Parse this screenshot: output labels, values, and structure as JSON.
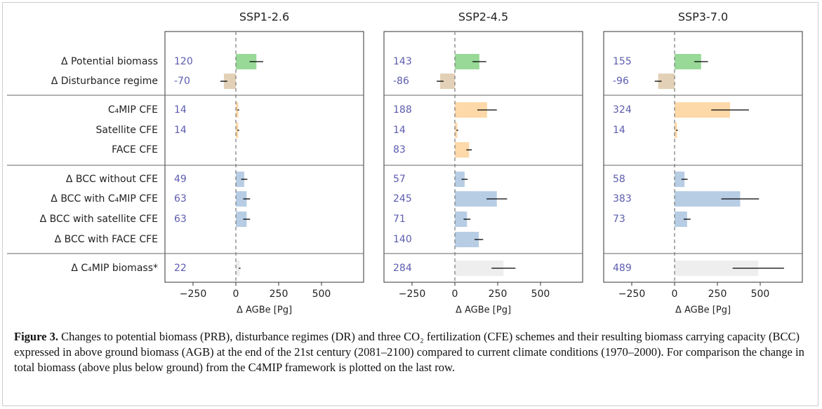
{
  "chart_data": [
    {
      "type": "hbar",
      "title": "SSP1-2.6",
      "xlabel": "Δ AGBe [Pg]",
      "categories": [
        "Δ Potential biomass",
        "Δ Disturbance regime",
        "C₄MIP CFE",
        "Satellite CFE",
        "FACE CFE",
        "Δ BCC without CFE",
        "Δ BCC with C₄MIP CFE",
        "Δ BCC with satellite CFE",
        "Δ BCC with FACE CFE",
        "Δ C₄MIP biomass*"
      ],
      "values": [
        120,
        -70,
        14,
        14,
        null,
        49,
        63,
        63,
        null,
        22
      ],
      "errors": [
        40,
        20,
        5,
        5,
        null,
        18,
        20,
        20,
        null,
        5
      ],
      "colors": [
        "#98d998",
        "#e3d1b7",
        "#fdd8a8",
        "#fdd8a8",
        "#fdd8a8",
        "#b7cde4",
        "#b7cde4",
        "#b7cde4",
        "#b7cde4",
        "#eeeeee"
      ],
      "xlim": [
        -414,
        746
      ],
      "xticks": [
        {
          "value": -250,
          "label": "−250"
        },
        0,
        250,
        500
      ]
    },
    {
      "type": "hbar",
      "title": "SSP2-4.5",
      "xlabel": "Δ AGBe [Pg]",
      "values": [
        143,
        -86,
        188,
        14,
        83,
        57,
        245,
        71,
        140,
        284
      ],
      "errors": [
        40,
        20,
        57,
        5,
        16,
        18,
        60,
        20,
        25,
        70
      ],
      "colors": [
        "#98d998",
        "#e3d1b7",
        "#fdd8a8",
        "#fdd8a8",
        "#fdd8a8",
        "#b7cde4",
        "#b7cde4",
        "#b7cde4",
        "#b7cde4",
        "#eeeeee"
      ],
      "xlim": [
        -414,
        746
      ],
      "xticks": [
        {
          "value": -250,
          "label": "−250"
        },
        0,
        250,
        500
      ]
    },
    {
      "type": "hbar",
      "title": "SSP3-7.0",
      "xlabel": "Δ AGBe [Pg]",
      "values": [
        155,
        -96,
        324,
        14,
        null,
        58,
        383,
        73,
        null,
        489
      ],
      "errors": [
        40,
        20,
        110,
        5,
        null,
        18,
        110,
        20,
        null,
        150
      ],
      "colors": [
        "#98d998",
        "#e3d1b7",
        "#fdd8a8",
        "#fdd8a8",
        "#fdd8a8",
        "#b7cde4",
        "#b7cde4",
        "#b7cde4",
        "#b7cde4",
        "#eeeeee"
      ],
      "xlim": [
        -414,
        746
      ],
      "xticks": [
        {
          "value": -250,
          "label": "−250"
        },
        0,
        250,
        500
      ]
    }
  ],
  "caption": {
    "label": "Figure 3.",
    "text": "Changes to potential biomass (PRB), disturbance regimes (DR) and three CO₂ fertilization (CFE) schemes and their resulting biomass carrying capacity (BCC) expressed in above ground biomass (AGB) at the end of the 21st century (2081–2100) compared to current climate conditions (1970–2000). For comparison the change in total biomass (above plus below ground) from the C4MIP framework is plotted on the last row."
  }
}
